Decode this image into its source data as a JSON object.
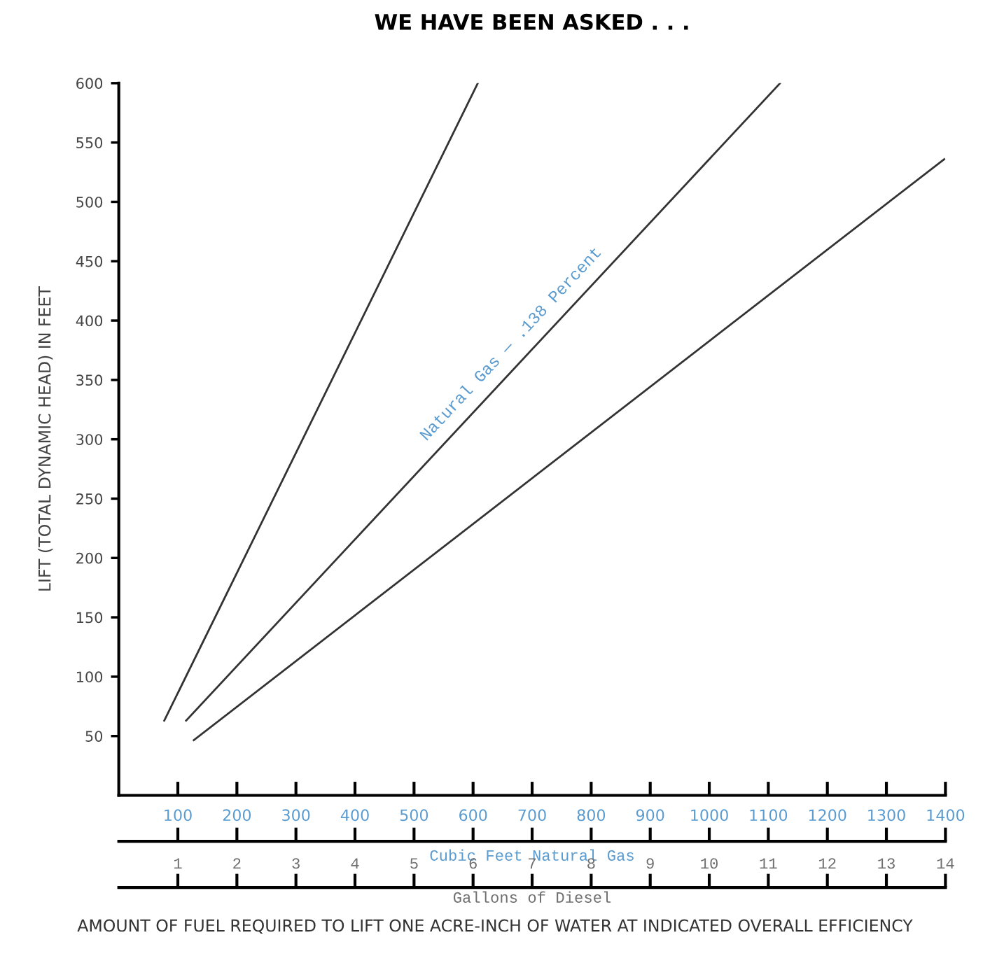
{
  "chart_data": {
    "type": "line",
    "title": "WE HAVE BEEN ASKED . . .",
    "ylabel": "LIFT (TOTAL DYNAMIC HEAD) IN FEET",
    "series": [
      {
        "color": "#333333",
        "x": [
          77,
          608
        ],
        "values": [
          63,
          600
        ]
      },
      {
        "color": "#333333",
        "x": [
          114,
          1120
        ],
        "values": [
          63,
          600
        ]
      },
      {
        "color": "#333333",
        "x": [
          127,
          1398
        ],
        "values": [
          46.5,
          536
        ]
      }
    ],
    "xlim": [
      0,
      1400
    ],
    "ylim": [
      0,
      600
    ],
    "xticks": [
      100,
      200,
      300,
      400,
      500,
      600,
      700,
      800,
      900,
      1000,
      1100,
      1200,
      1300,
      1400
    ],
    "yticks": [
      50,
      100,
      150,
      200,
      250,
      300,
      350,
      400,
      450,
      500,
      550,
      600
    ],
    "xlabel": "Cubic Feet Natural Gas",
    "x2label": "Gallons of Diesel",
    "x2lim": [
      0,
      14
    ],
    "x2ticks": [
      1,
      2,
      3,
      4,
      5,
      6,
      7,
      8,
      9,
      10,
      11,
      12,
      13,
      14
    ],
    "annotations": [
      "Natural Gas — .138 Percent",
      "AMOUNT OF FUEL REQUIRED TO LIFT ONE ACRE-INCH OF WATER AT INDICATED OVERALL EFFICIENCY"
    ],
    "grid": false,
    "legend": false,
    "marker": "none",
    "line_style": "solid"
  }
}
